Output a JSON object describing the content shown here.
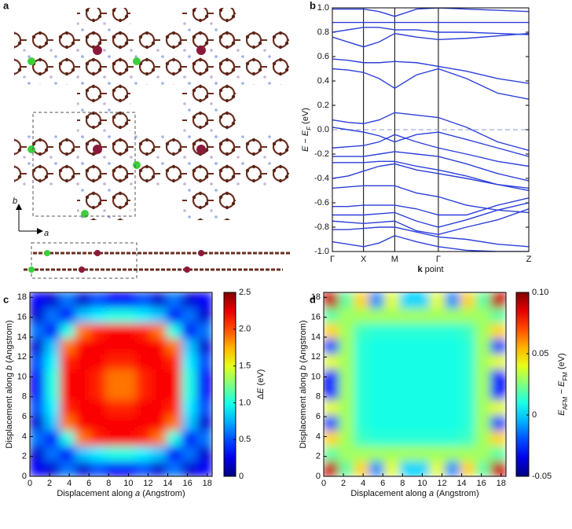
{
  "panels": [
    "a",
    "b",
    "c",
    "d"
  ],
  "structure": {
    "axis_labels": [
      "b",
      "a"
    ]
  },
  "chart_data": [
    {
      "type": "band",
      "color": "#2b3fd8",
      "ylabel": [
        "E",
        " − E",
        "F",
        " (eV)"
      ],
      "xlabel": [
        "k",
        " point"
      ],
      "x": [
        0,
        0.5,
        1,
        1.5,
        2,
        2.7,
        3.4,
        4.3,
        5.3,
        6.3
      ],
      "xlim": [
        0,
        6.3
      ],
      "xticks": [
        {
          "value": 0,
          "label": "Γ"
        },
        {
          "value": 1,
          "label": "X"
        },
        {
          "value": 2,
          "label": "M"
        },
        {
          "value": 3.4,
          "label": "Γ"
        },
        {
          "value": 6.3,
          "label": "Z"
        }
      ],
      "ylim": [
        -1,
        1
      ],
      "yticks": [
        {
          "value": -1,
          "label": "-1.0"
        },
        -0.8,
        -0.6,
        -0.4,
        -0.2,
        {
          "value": 0,
          "label": "0.0"
        },
        0.2,
        0.4,
        0.6,
        0.8,
        {
          "value": 1,
          "label": "1.0"
        }
      ],
      "fermi_level": 0,
      "series": [
        {
          "values": [
            0.99,
            0.99,
            0.99,
            0.97,
            0.93,
            0.99,
            1.0,
            0.99,
            0.98,
            0.97
          ]
        },
        {
          "values": [
            0.88,
            0.88,
            0.88,
            0.88,
            0.88,
            0.88,
            0.88,
            0.88,
            0.88,
            0.88
          ]
        },
        {
          "values": [
            0.8,
            0.82,
            0.84,
            0.84,
            0.82,
            0.82,
            0.8,
            0.8,
            0.79,
            0.78
          ]
        },
        {
          "values": [
            0.76,
            0.72,
            0.68,
            0.72,
            0.79,
            0.76,
            0.74,
            0.75,
            0.77,
            0.79
          ]
        },
        {
          "values": [
            0.58,
            0.57,
            0.55,
            0.55,
            0.56,
            0.55,
            0.52,
            0.48,
            0.42,
            0.38
          ]
        },
        {
          "values": [
            0.5,
            0.49,
            0.47,
            0.42,
            0.34,
            0.45,
            0.5,
            0.42,
            0.3,
            0.25
          ]
        },
        {
          "values": [
            0.08,
            0.06,
            0.05,
            0.08,
            0.14,
            0.12,
            0.1,
            0.02,
            -0.1,
            -0.17
          ]
        },
        {
          "values": [
            0.02,
            0.0,
            -0.02,
            -0.05,
            -0.1,
            -0.04,
            -0.02,
            -0.08,
            -0.15,
            -0.22
          ]
        },
        {
          "values": [
            -0.15,
            -0.14,
            -0.13,
            -0.1,
            -0.04,
            -0.1,
            -0.15,
            -0.2,
            -0.26,
            -0.3
          ]
        },
        {
          "values": [
            -0.22,
            -0.22,
            -0.22,
            -0.2,
            -0.18,
            -0.2,
            -0.22,
            -0.28,
            -0.36,
            -0.42
          ]
        },
        {
          "values": [
            -0.27,
            -0.27,
            -0.27,
            -0.26,
            -0.26,
            -0.3,
            -0.33,
            -0.38,
            -0.45,
            -0.5
          ]
        },
        {
          "values": [
            -0.4,
            -0.38,
            -0.34,
            -0.3,
            -0.28,
            -0.33,
            -0.36,
            -0.4,
            -0.45,
            -0.48
          ]
        },
        {
          "values": [
            -0.48,
            -0.47,
            -0.46,
            -0.46,
            -0.46,
            -0.52,
            -0.55,
            -0.62,
            -0.66,
            -0.68
          ]
        },
        {
          "values": [
            -0.63,
            -0.63,
            -0.62,
            -0.62,
            -0.62,
            -0.65,
            -0.7,
            -0.7,
            -0.62,
            -0.56
          ]
        },
        {
          "values": [
            -0.7,
            -0.7,
            -0.7,
            -0.69,
            -0.68,
            -0.75,
            -0.8,
            -0.74,
            -0.66,
            -0.6
          ]
        },
        {
          "values": [
            -0.75,
            -0.76,
            -0.77,
            -0.76,
            -0.75,
            -0.83,
            -0.86,
            -0.8,
            -0.74,
            -0.65
          ]
        },
        {
          "values": [
            -0.82,
            -0.82,
            -0.81,
            -0.8,
            -0.8,
            -0.84,
            -0.88,
            -0.9,
            -0.94,
            -0.96
          ]
        },
        {
          "values": [
            -0.92,
            -0.94,
            -0.96,
            -0.93,
            -0.87,
            -0.92,
            -0.96,
            -0.99,
            -1.0,
            -1.0
          ]
        }
      ]
    },
    {
      "type": "heatmap",
      "xlabel": [
        "Displacement along ",
        "a",
        " (Angstrom)"
      ],
      "ylabel": [
        "Displacement along ",
        "b",
        " (Angstrom)"
      ],
      "clabel": [
        "Δ",
        "E",
        " (eV)"
      ],
      "xlim": [
        0,
        18.5
      ],
      "ylim": [
        0,
        18.5
      ],
      "xticks": [
        0,
        2,
        4,
        6,
        8,
        10,
        12,
        14,
        16,
        18
      ],
      "yticks": [
        0,
        2,
        4,
        6,
        8,
        10,
        12,
        14,
        16,
        18
      ],
      "clim": [
        0,
        2.5
      ],
      "cticks": [
        0,
        0.5,
        {
          "value": 1,
          "label": "1.0"
        },
        1.5,
        {
          "value": 2,
          "label": "2.0"
        },
        2.5
      ],
      "z": [
        [
          0.3,
          0.2,
          0.6,
          0.2,
          0.5,
          0.3,
          0.3,
          0.5,
          0.2,
          0.6,
          0.2,
          0.3
        ],
        [
          0.2,
          0.6,
          0.3,
          0.8,
          0.9,
          1.0,
          1.0,
          0.9,
          0.8,
          0.3,
          0.6,
          0.2
        ],
        [
          0.6,
          0.3,
          1.0,
          1.9,
          2.1,
          2.2,
          2.2,
          2.1,
          1.9,
          1.0,
          0.3,
          0.6
        ],
        [
          0.2,
          0.8,
          1.9,
          2.2,
          2.2,
          2.2,
          2.2,
          2.2,
          2.2,
          1.9,
          0.8,
          0.2
        ],
        [
          0.5,
          0.9,
          2.1,
          2.2,
          2.2,
          2.1,
          2.1,
          2.2,
          2.2,
          2.1,
          0.9,
          0.5
        ],
        [
          0.3,
          1.0,
          2.2,
          2.2,
          2.1,
          1.9,
          1.9,
          2.1,
          2.2,
          2.2,
          1.0,
          0.3
        ],
        [
          0.3,
          1.0,
          2.2,
          2.2,
          2.1,
          1.9,
          1.9,
          2.1,
          2.2,
          2.2,
          1.0,
          0.3
        ],
        [
          0.5,
          0.9,
          2.1,
          2.2,
          2.2,
          2.1,
          2.1,
          2.2,
          2.2,
          2.1,
          0.9,
          0.5
        ],
        [
          0.2,
          0.8,
          1.9,
          2.2,
          2.2,
          2.2,
          2.2,
          2.2,
          2.2,
          1.9,
          0.8,
          0.2
        ],
        [
          0.6,
          0.3,
          1.0,
          1.9,
          2.1,
          2.2,
          2.2,
          2.1,
          1.9,
          1.0,
          0.3,
          0.6
        ],
        [
          0.2,
          0.6,
          0.3,
          0.8,
          0.9,
          1.0,
          1.0,
          0.9,
          0.8,
          0.3,
          0.6,
          0.2
        ],
        [
          0.3,
          0.2,
          0.6,
          0.2,
          0.5,
          0.3,
          0.3,
          0.5,
          0.2,
          0.6,
          0.2,
          0.3
        ]
      ]
    },
    {
      "type": "heatmap",
      "xlabel": [
        "Displacement along ",
        "a",
        " (Angstrom)"
      ],
      "ylabel": [
        "Displacement along ",
        "b",
        " (Angstrom)"
      ],
      "clabel": [
        "E",
        "AFM",
        " − E",
        "FM",
        " (eV)"
      ],
      "xlim": [
        0,
        18.5
      ],
      "ylim": [
        0,
        18.5
      ],
      "xticks": [
        0,
        2,
        4,
        6,
        8,
        10,
        12,
        14,
        16,
        18
      ],
      "yticks": [
        0,
        2,
        4,
        6,
        8,
        10,
        12,
        14,
        16,
        18
      ],
      "clim": [
        -0.05,
        0.1
      ],
      "cticks": [
        -0.05,
        0,
        0.05,
        {
          "value": 0.1,
          "label": "0.10"
        }
      ],
      "z": [
        [
          0.09,
          0.02,
          0.05,
          -0.01,
          0.04,
          0.0,
          0.0,
          0.04,
          -0.01,
          0.05,
          0.02,
          0.09
        ],
        [
          0.02,
          0.03,
          0.03,
          0.03,
          0.03,
          0.03,
          0.03,
          0.03,
          0.03,
          0.03,
          0.03,
          0.02
        ],
        [
          0.05,
          0.03,
          0.015,
          0.012,
          0.012,
          0.012,
          0.012,
          0.012,
          0.012,
          0.015,
          0.03,
          0.05
        ],
        [
          -0.02,
          0.03,
          0.012,
          0.01,
          0.01,
          0.01,
          0.01,
          0.01,
          0.01,
          0.012,
          0.03,
          -0.02
        ],
        [
          0.04,
          0.03,
          0.012,
          0.01,
          0.01,
          0.01,
          0.01,
          0.01,
          0.01,
          0.012,
          0.03,
          0.04
        ],
        [
          -0.03,
          0.03,
          0.012,
          0.01,
          0.01,
          0.01,
          0.01,
          0.01,
          0.01,
          0.012,
          0.03,
          -0.03
        ],
        [
          -0.03,
          0.03,
          0.012,
          0.01,
          0.01,
          0.01,
          0.01,
          0.01,
          0.01,
          0.012,
          0.03,
          -0.03
        ],
        [
          0.04,
          0.03,
          0.012,
          0.01,
          0.01,
          0.01,
          0.01,
          0.01,
          0.01,
          0.012,
          0.03,
          0.04
        ],
        [
          -0.02,
          0.03,
          0.012,
          0.01,
          0.01,
          0.01,
          0.01,
          0.01,
          0.01,
          0.012,
          0.03,
          -0.02
        ],
        [
          0.05,
          0.03,
          0.015,
          0.012,
          0.012,
          0.012,
          0.012,
          0.012,
          0.012,
          0.015,
          0.03,
          0.05
        ],
        [
          0.02,
          0.03,
          0.03,
          0.03,
          0.03,
          0.03,
          0.03,
          0.03,
          0.03,
          0.03,
          0.03,
          0.02
        ],
        [
          0.09,
          0.02,
          0.05,
          -0.01,
          0.04,
          0.0,
          0.0,
          0.04,
          -0.01,
          0.05,
          0.02,
          0.09
        ]
      ]
    }
  ]
}
